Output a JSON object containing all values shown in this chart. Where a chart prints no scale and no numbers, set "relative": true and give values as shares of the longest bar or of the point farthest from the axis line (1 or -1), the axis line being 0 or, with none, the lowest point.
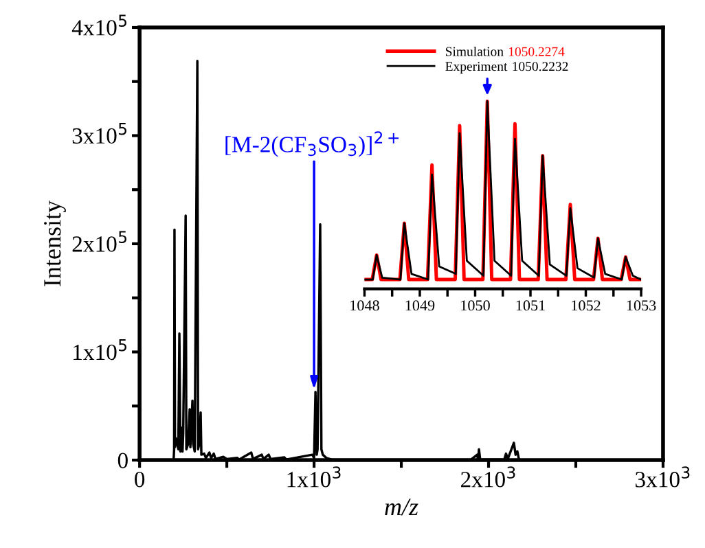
{
  "chart_data": [
    {
      "type": "line",
      "xlabel": "m/z",
      "ylabel": "Intensity",
      "x": [
        180,
        195,
        198,
        200,
        203,
        210,
        222,
        228,
        234,
        240,
        246,
        250,
        264,
        268,
        278,
        287,
        291,
        303,
        307,
        316,
        331,
        335,
        342,
        350,
        354,
        370,
        380,
        400,
        410,
        425,
        435,
        480,
        500,
        560,
        570,
        640,
        650,
        700,
        710,
        740,
        750,
        830,
        840,
        990,
        1000,
        1008,
        1015,
        1020,
        1035,
        1042,
        1050,
        1070,
        1100,
        1300,
        1900,
        1935,
        1940,
        1945,
        1952,
        2090,
        2100,
        2110,
        2145,
        2155,
        2165,
        2175,
        2850
      ],
      "series": [
        {
          "color": "#000000",
          "values": [
            0,
            0,
            10000,
            213000,
            12000,
            20000,
            10000,
            117000,
            8000,
            30000,
            8000,
            25000,
            226000,
            10000,
            15000,
            47000,
            12000,
            55000,
            15000,
            8000,
            369000,
            10000,
            15000,
            44000,
            5000,
            6000,
            2000,
            7000,
            2000,
            6000,
            1000,
            3000,
            1000,
            2000,
            500,
            7000,
            1000,
            5000,
            1000,
            5000,
            1000,
            2500,
            500,
            5000,
            2000,
            63000,
            5000,
            10000,
            218000,
            10000,
            5000,
            2000,
            500,
            300,
            500,
            5000,
            0,
            10000,
            500,
            500,
            6000,
            1000,
            16000,
            5000,
            8000,
            0,
            0
          ]
        }
      ],
      "xlim": [
        0,
        3000
      ],
      "ylim": [
        0,
        400000
      ],
      "xticks": [
        0,
        {
          "value": 500,
          "label": null
        },
        {
          "value": 1000,
          "label": "1x10$^{3}$"
        },
        {
          "value": 1500,
          "label": null
        },
        {
          "value": 2000,
          "label": "2x10$^{3}$"
        },
        {
          "value": 2500,
          "label": null
        },
        {
          "value": 3000,
          "label": "3x10$^{3}$"
        }
      ],
      "yticks": [
        0,
        {
          "value": 50000,
          "label": null
        },
        {
          "value": 100000,
          "label": "1x10$^{5}$"
        },
        {
          "value": 150000,
          "label": null
        },
        {
          "value": 200000,
          "label": "2x10$^{5}$"
        },
        {
          "value": 250000,
          "label": null
        },
        {
          "value": 300000,
          "label": "3x10$^{5}$"
        },
        {
          "value": 350000,
          "label": null
        },
        {
          "value": 400000,
          "label": "4x10$^{5}$"
        }
      ],
      "annotations": [
        {
          "text": "[M-2(CF$_{3}$SO$_{3}$)]$^{2+}$",
          "x": 1000,
          "y": 65000
        }
      ]
    },
    {
      "type": "line",
      "relative": true,
      "tick_labels": "x",
      "legend": "top",
      "series": [
        {
          "name": "Simulation",
          "color": "#ff0000",
          "x": [
            1048.0,
            1048.14,
            1048.22,
            1048.3,
            1048.64,
            1048.72,
            1048.8,
            1049.14,
            1049.22,
            1049.3,
            1049.64,
            1049.72,
            1049.8,
            1050.14,
            1050.22,
            1050.3,
            1050.64,
            1050.72,
            1050.8,
            1051.14,
            1051.22,
            1051.3,
            1051.64,
            1051.72,
            1051.8,
            1052.14,
            1052.22,
            1052.3,
            1052.64,
            1052.72,
            1052.8,
            1053.0
          ],
          "values": [
            0.05,
            0.05,
            0.18,
            0.05,
            0.05,
            0.35,
            0.05,
            0.05,
            0.66,
            0.05,
            0.05,
            0.87,
            0.05,
            0.05,
            1.0,
            0.05,
            0.05,
            0.88,
            0.05,
            0.05,
            0.71,
            0.05,
            0.05,
            0.45,
            0.05,
            0.05,
            0.27,
            0.05,
            0.05,
            0.17,
            0.05,
            0.05
          ]
        },
        {
          "name": "Experiment",
          "color": "#000000",
          "x": [
            1048.0,
            1048.15,
            1048.22,
            1048.32,
            1048.65,
            1048.72,
            1048.85,
            1049.15,
            1049.22,
            1049.35,
            1049.65,
            1049.72,
            1049.85,
            1050.15,
            1050.22,
            1050.35,
            1050.65,
            1050.72,
            1050.85,
            1051.15,
            1051.22,
            1051.35,
            1051.65,
            1051.72,
            1051.85,
            1052.15,
            1052.22,
            1052.35,
            1052.65,
            1052.72,
            1052.85,
            1053.0
          ],
          "values": [
            0.05,
            0.05,
            0.18,
            0.06,
            0.05,
            0.35,
            0.08,
            0.05,
            0.61,
            0.12,
            0.08,
            0.83,
            0.15,
            0.07,
            1.0,
            0.15,
            0.07,
            0.8,
            0.15,
            0.07,
            0.71,
            0.13,
            0.07,
            0.43,
            0.11,
            0.06,
            0.27,
            0.08,
            0.05,
            0.17,
            0.07,
            0.05
          ]
        }
      ],
      "xlim": [
        1048,
        1053
      ],
      "xticks": [
        1048,
        {
          "value": 1048.5,
          "label": null
        },
        1049,
        {
          "value": 1049.5,
          "label": null
        },
        1050,
        {
          "value": 1050.5,
          "label": null
        },
        1051,
        {
          "value": 1051.5,
          "label": null
        },
        1052,
        {
          "value": 1052.5,
          "label": null
        },
        1053
      ],
      "annotations": [
        "1050.2274",
        "1050.2232"
      ]
    }
  ]
}
